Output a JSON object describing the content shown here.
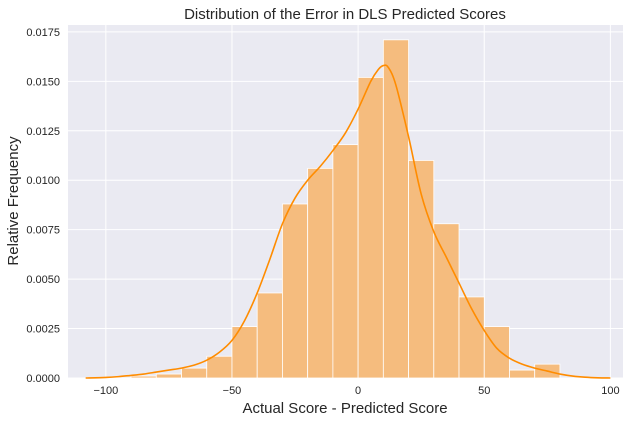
{
  "chart_data": {
    "type": "bar",
    "subtype": "histogram-with-kde",
    "title": "Distribution of the Error in DLS Predicted Scores",
    "xlabel": "Actual Score - Predicted Score",
    "ylabel": "Relative Frequency",
    "xlim": [
      -115,
      105
    ],
    "ylim": [
      0,
      0.01785
    ],
    "xticks": [
      -100,
      -50,
      0,
      50,
      100
    ],
    "xtick_labels": [
      "−100",
      "−50",
      "0",
      "50",
      "100"
    ],
    "yticks": [
      0,
      0.0025,
      0.005,
      0.0075,
      0.01,
      0.0125,
      0.015,
      0.0175
    ],
    "ytick_labels": [
      "0.0000",
      "0.0025",
      "0.0050",
      "0.0075",
      "0.0100",
      "0.0125",
      "0.0150",
      "0.0175"
    ],
    "grid": true,
    "bin_edges": [
      -90,
      -80,
      -70,
      -60,
      -50,
      -40,
      -30,
      -20,
      -10,
      0,
      10,
      20,
      30,
      40,
      50,
      60,
      70,
      80
    ],
    "bin_values": [
      0.0001,
      0.0002,
      0.0005,
      0.0011,
      0.0026,
      0.0043,
      0.0088,
      0.0106,
      0.0118,
      0.0152,
      0.0171,
      0.011,
      0.0078,
      0.0041,
      0.0026,
      0.0004,
      0.0007
    ],
    "kde": {
      "x": [
        -108,
        -100,
        -95,
        -90,
        -85,
        -80,
        -75,
        -70,
        -65,
        -60,
        -55,
        -50,
        -45,
        -40,
        -35,
        -30,
        -25,
        -20,
        -15,
        -10,
        -5,
        0,
        5,
        8,
        10,
        12,
        15,
        20,
        25,
        30,
        35,
        40,
        45,
        50,
        55,
        60,
        65,
        70,
        75,
        80,
        85,
        90,
        95,
        100
      ],
      "y": [
        0.0,
        3e-05,
        7e-05,
        0.00013,
        0.0002,
        0.0003,
        0.0004,
        0.0005,
        0.00065,
        0.0009,
        0.0013,
        0.0019,
        0.0029,
        0.0043,
        0.006,
        0.0078,
        0.0091,
        0.01,
        0.0107,
        0.0115,
        0.0124,
        0.0136,
        0.015,
        0.0156,
        0.0158,
        0.0157,
        0.0148,
        0.0122,
        0.0093,
        0.0074,
        0.0061,
        0.0048,
        0.0035,
        0.0024,
        0.0015,
        0.001,
        0.0007,
        0.0005,
        0.00035,
        0.0002,
        0.0001,
        4e-05,
        1e-05,
        0.0
      ],
      "color": "#ff8c00"
    },
    "bar_color": "#f5bc7e",
    "background_color": "#eaeaf2",
    "grid_color": "#ffffff"
  }
}
